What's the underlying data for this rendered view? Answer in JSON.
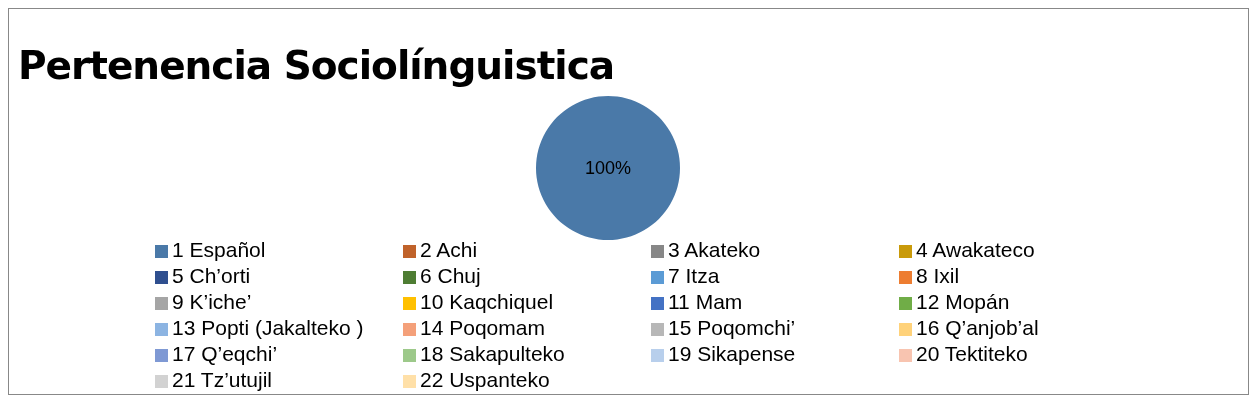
{
  "chart_data": {
    "type": "pie",
    "title": "Pertenencia Sociolínguistica",
    "categories": [
      "1 Español",
      "2 Achi",
      "3 Akateko",
      "4 Awakateco",
      "5 Ch’orti",
      "6 Chuj",
      "7 Itza",
      "8 Ixil",
      "9 K’iche’",
      "10 Kaqchiquel",
      "11 Mam",
      "12 Mopán",
      "13 Popti (Jakalteko )",
      "14 Poqomam",
      "15 Poqomchi’",
      "16 Q’anjob’al",
      "17 Q’eqchi’",
      "18 Sakapulteko",
      "19 Sikapense",
      "20 Tektiteko",
      "21 Tz’utujil",
      "22 Uspanteko"
    ],
    "values": [
      100,
      0,
      0,
      0,
      0,
      0,
      0,
      0,
      0,
      0,
      0,
      0,
      0,
      0,
      0,
      0,
      0,
      0,
      0,
      0,
      0,
      0
    ],
    "value_labels": [
      "100%",
      null,
      null,
      null,
      null,
      null,
      null,
      null,
      null,
      null,
      null,
      null,
      null,
      null,
      null,
      null,
      null,
      null,
      null,
      null,
      null,
      null
    ],
    "colors": [
      "#4a79a8",
      "#c0622a",
      "#878787",
      "#c99a0a",
      "#2f4f8f",
      "#4e7d33",
      "#5b9bd5",
      "#ed7d31",
      "#a5a5a5",
      "#ffc000",
      "#4472c4",
      "#70ad47",
      "#8cb4e2",
      "#f4a07a",
      "#b7b7b7",
      "#ffd27a",
      "#7f99d4",
      "#9dc98a",
      "#b8cfec",
      "#f8c4b0",
      "#d2d2d2",
      "#ffe0a8"
    ],
    "legend": "bottom"
  }
}
